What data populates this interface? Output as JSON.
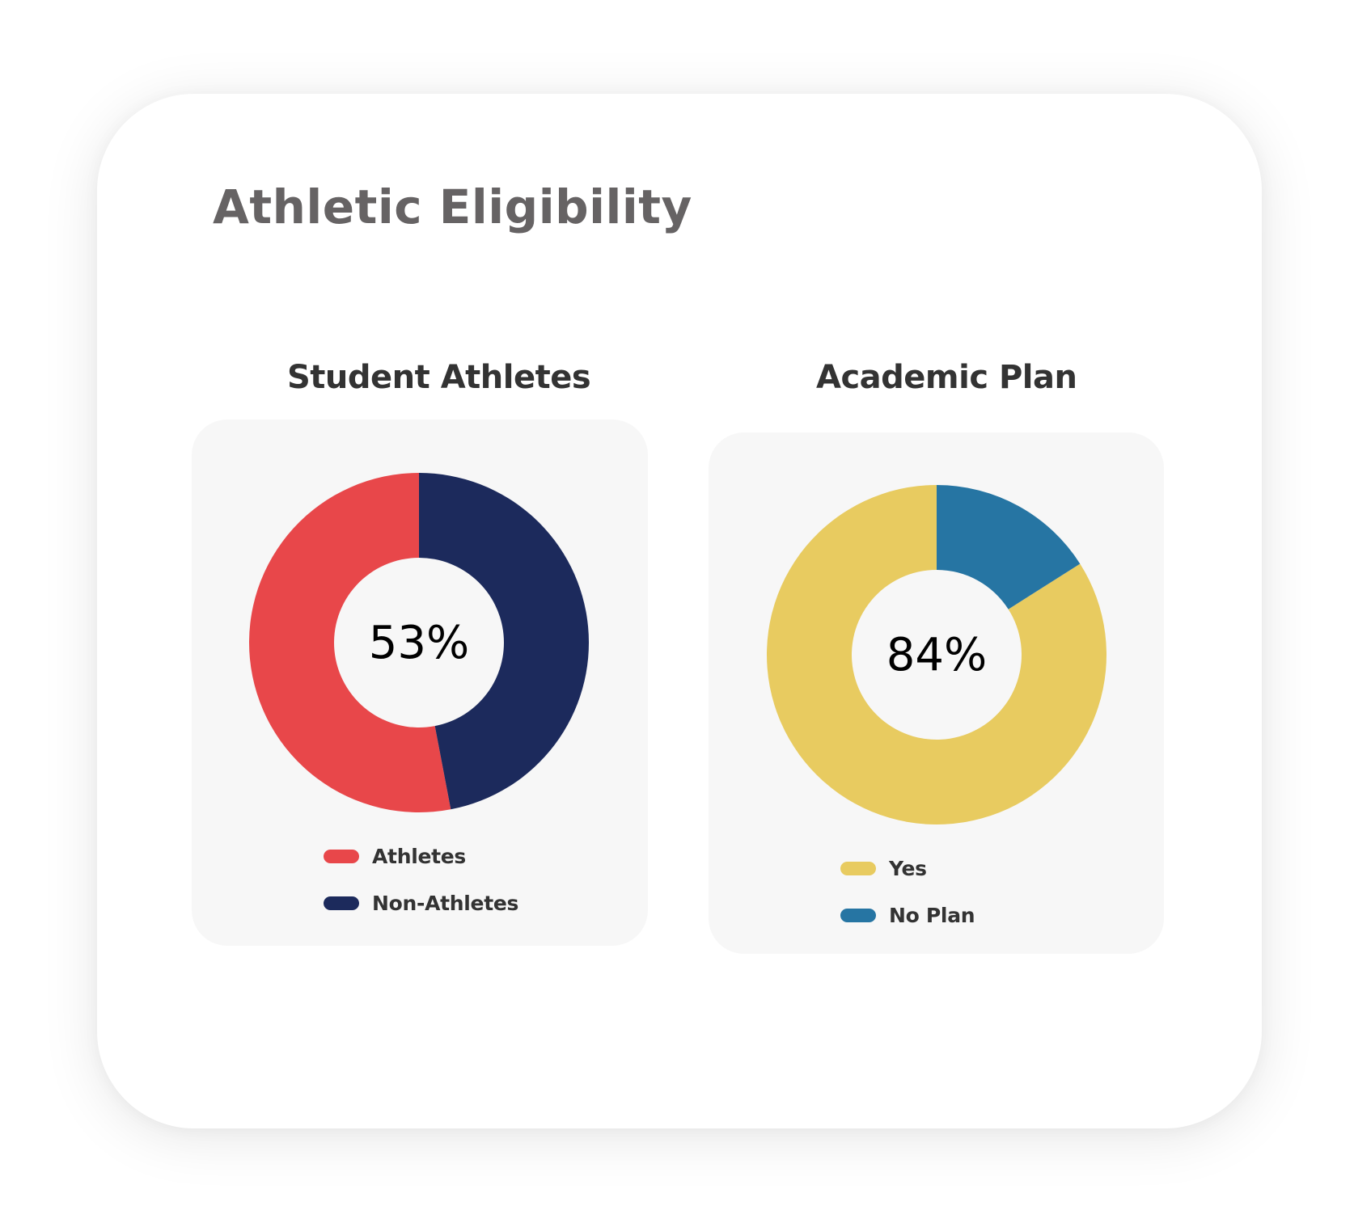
{
  "card": {
    "title": "Athletic Eligibility"
  },
  "charts": [
    {
      "heading": "Student Athletes",
      "center_label": "53%",
      "legend": [
        {
          "label": "Athletes",
          "color": "#E8474A"
        },
        {
          "label": "Non-Athletes",
          "color": "#1C2A5C"
        }
      ]
    },
    {
      "heading": "Academic Plan",
      "center_label": "84%",
      "legend": [
        {
          "label": "Yes",
          "color": "#E8CB60"
        },
        {
          "label": "No Plan",
          "color": "#2675A3"
        }
      ]
    }
  ],
  "chart_data": [
    {
      "type": "pie",
      "title": "Student Athletes",
      "donut": true,
      "center_text": "53%",
      "categories": [
        "Athletes",
        "Non-Athletes"
      ],
      "values": [
        53,
        47
      ],
      "colors": [
        "#E8474A",
        "#1C2A5C"
      ],
      "legend_position": "bottom"
    },
    {
      "type": "pie",
      "title": "Academic Plan",
      "donut": true,
      "center_text": "84%",
      "categories": [
        "Yes",
        "No Plan"
      ],
      "values": [
        84,
        16
      ],
      "colors": [
        "#E8CB60",
        "#2675A3"
      ],
      "legend_position": "bottom"
    }
  ]
}
